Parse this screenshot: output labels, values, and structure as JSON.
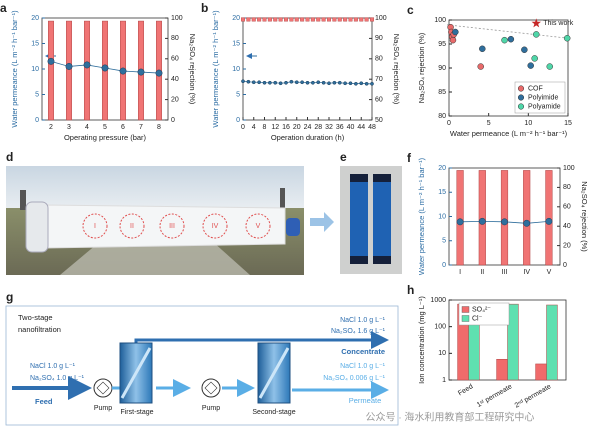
{
  "chart_data": [
    {
      "type": "combo",
      "panel": "a",
      "categories": [
        "2",
        "3",
        "4",
        "5",
        "6",
        "7",
        "8"
      ],
      "xlabel": "Operating pressure (bar)",
      "ylabel": "Water permeance (L m⁻² h⁻¹ bar⁻¹)",
      "y2label": "Na₂SO₄ rejection (%)",
      "ylim": [
        0,
        20
      ],
      "yticks": [
        0,
        5,
        10,
        15,
        20
      ],
      "y2lim": [
        0,
        100
      ],
      "y2ticks": [
        0,
        20,
        40,
        60,
        80,
        100
      ],
      "y_color": "#2b6ca3",
      "series": [
        {
          "kind": "bar",
          "axis": "y2",
          "color": "#f07474",
          "values": [
            97,
            97,
            97,
            97,
            97,
            97,
            97
          ]
        },
        {
          "kind": "line",
          "axis": "y",
          "color": "#2f6e9c",
          "values": [
            11.5,
            10.5,
            10.8,
            10.2,
            9.6,
            9.4,
            9.2
          ]
        }
      ]
    },
    {
      "type": "combo",
      "panel": "b",
      "x": [
        0,
        2,
        4,
        6,
        8,
        10,
        12,
        14,
        16,
        18,
        20,
        22,
        24,
        26,
        28,
        30,
        32,
        34,
        36,
        38,
        40,
        42,
        44,
        46,
        48
      ],
      "xlim": [
        0,
        48
      ],
      "xticks": [
        0,
        4,
        8,
        12,
        16,
        20,
        24,
        28,
        32,
        36,
        40,
        44,
        48
      ],
      "xlabel": "Operation duration (h)",
      "ylabel": "Water permeance (L m⁻² h⁻¹ bar⁻¹)",
      "y2label": "Na₂SO₄ rejection (%)",
      "ylim": [
        0,
        20
      ],
      "yticks": [
        0,
        5,
        10,
        15,
        20
      ],
      "y2lim": [
        50,
        100
      ],
      "y2ticks": [
        50,
        60,
        70,
        80,
        90,
        100
      ],
      "y_color": "#2b6ca3",
      "series": [
        {
          "kind": "markers",
          "axis": "y2",
          "color": "#f07474",
          "values": [
            99.3,
            99.3,
            99.3,
            99.3,
            99.3,
            99.3,
            99.3,
            99.3,
            99.3,
            99.3,
            99.3,
            99.3,
            99.3,
            99.3,
            99.3,
            99.3,
            99.3,
            99.3,
            99.3,
            99.3,
            99.3,
            99.3,
            99.3,
            99.3,
            99.3
          ]
        },
        {
          "kind": "line",
          "axis": "y",
          "color": "#2f6e9c",
          "values": [
            7.6,
            7.5,
            7.4,
            7.4,
            7.3,
            7.3,
            7.3,
            7.2,
            7.3,
            7.5,
            7.4,
            7.4,
            7.3,
            7.3,
            7.4,
            7.3,
            7.2,
            7.3,
            7.3,
            7.2,
            7.2,
            7.1,
            7.2,
            7.1,
            7.1
          ]
        }
      ]
    },
    {
      "type": "scatter",
      "panel": "c",
      "xlabel": "Water permeance  (L m⁻² h⁻¹ bar⁻¹)",
      "ylabel": "Na₂SO₄ rejection (%)",
      "xlim": [
        0,
        15
      ],
      "xticks": [
        0,
        5,
        10,
        15
      ],
      "ylim": [
        80,
        100
      ],
      "yticks": [
        80,
        85,
        90,
        95,
        100
      ],
      "legend": "lower right",
      "series": [
        {
          "name": "COF",
          "color": "#e86a6a",
          "x": [
            0.2,
            0.3,
            0.4,
            0.5,
            0.6,
            4.0
          ],
          "values": [
            98.5,
            97.5,
            96.5,
            95.8,
            97.0,
            90.3
          ]
        },
        {
          "name": "Polyimide",
          "color": "#2f6e9c",
          "x": [
            0.8,
            4.2,
            7.8,
            9.5,
            10.3
          ],
          "values": [
            97.5,
            94.0,
            96.0,
            93.8,
            90.5
          ]
        },
        {
          "name": "Polyamide",
          "color": "#4fd6a8",
          "x": [
            7.0,
            10.8,
            11.0,
            12.7,
            14.9
          ],
          "values": [
            95.8,
            92.0,
            97.0,
            90.3,
            96.2
          ]
        }
      ],
      "annotation": {
        "text": "This work",
        "x": 11.0,
        "y": 99.3,
        "color": "#c62828"
      }
    },
    {
      "type": "combo",
      "panel": "f",
      "categories": [
        "I",
        "II",
        "III",
        "IV",
        "V"
      ],
      "ylabel": "Water permeance (L m⁻² h⁻¹ bar⁻¹)",
      "y2label": "Na₂SO₄ rejection (%)",
      "ylim": [
        0,
        20
      ],
      "yticks": [
        0,
        5,
        10,
        15,
        20
      ],
      "y2lim": [
        0,
        100
      ],
      "y2ticks": [
        0,
        20,
        40,
        60,
        80,
        100
      ],
      "y_color": "#2b6ca3",
      "series": [
        {
          "kind": "bar",
          "axis": "y2",
          "color": "#f07474",
          "values": [
            97.5,
            97.5,
            97.5,
            97.5,
            97.5
          ]
        },
        {
          "kind": "line",
          "axis": "y",
          "color": "#2f6e9c",
          "values": [
            8.9,
            9.0,
            8.9,
            8.6,
            9.0
          ]
        }
      ]
    },
    {
      "type": "bar",
      "panel": "h",
      "categories": [
        "Feed",
        "1ˢᵗ permeate",
        "2ⁿᵈ permeate"
      ],
      "ylabel": "Ion concentration (mg L⁻¹)",
      "log_y": true,
      "ylim": [
        1,
        1000
      ],
      "yticks": [
        1,
        10,
        100,
        1000
      ],
      "legend": "upper left",
      "series": [
        {
          "name": "SO₄²⁻",
          "kind": "bar",
          "color": "#f06b6b",
          "values": [
            700,
            6,
            4
          ]
        },
        {
          "name": "Cl⁻",
          "kind": "bar",
          "color": "#5fe0b0",
          "values": [
            620,
            700,
            650
          ]
        }
      ]
    }
  ],
  "photo_d": {
    "panel": "d",
    "labels": [
      "I",
      "II",
      "III",
      "IV",
      "V"
    ]
  },
  "photo_e": {
    "panel": "e"
  },
  "diagram_g": {
    "panel": "g",
    "title": [
      "Two-stage",
      "nanofiltration"
    ],
    "concentrate": {
      "lines": [
        "NaCl  1.0 g L⁻¹",
        "Na₂SO₄ 1.6 g L⁻¹"
      ],
      "label": "Concentrate"
    },
    "feed": {
      "lines": [
        "NaCl   1.0 g L⁻¹",
        "Na₂SO₄ 1.0 g L⁻¹"
      ],
      "label": "Feed"
    },
    "permeate": {
      "lines": [
        "NaCl   1.0  g L⁻¹",
        "Na₂SO₄ 0.006 g L⁻¹"
      ],
      "label": "Permeate"
    },
    "units": [
      "Pump",
      "First-stage",
      "Pump",
      "Second-stage"
    ]
  },
  "watermark": "公众号 · 海水利用教育部工程研究中心"
}
